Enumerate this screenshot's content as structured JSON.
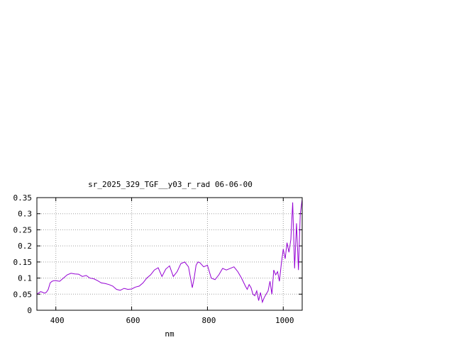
{
  "chart_data": {
    "type": "line",
    "title": "sr_2025_329_TGF__y03_r_rad 06-06-00",
    "xlabel": "nm",
    "ylabel": "",
    "xlim": [
      350,
      1050
    ],
    "ylim": [
      0,
      0.35
    ],
    "xticks": [
      400,
      600,
      800,
      1000
    ],
    "xtick_labels": [
      "400",
      "600",
      "800",
      "1000"
    ],
    "yticks": [
      0,
      0.05,
      0.1,
      0.15,
      0.2,
      0.25,
      0.3,
      0.35
    ],
    "ytick_labels": [
      "0",
      "0.05",
      "0.1",
      "0.15",
      "0.2",
      "0.25",
      "0.3",
      "0.35"
    ],
    "grid": true,
    "legend": "none",
    "series_color": "#9400d3",
    "series": [
      {
        "x": [
          350,
          360,
          365,
          370,
          375,
          380,
          385,
          390,
          395,
          400,
          410,
          420,
          430,
          440,
          450,
          460,
          470,
          480,
          490,
          500,
          510,
          520,
          530,
          540,
          550,
          560,
          570,
          580,
          590,
          600,
          610,
          620,
          630,
          640,
          650,
          660,
          670,
          680,
          690,
          700,
          710,
          720,
          730,
          740,
          750,
          760,
          765,
          770,
          775,
          780,
          790,
          800,
          810,
          820,
          830,
          840,
          850,
          860,
          870,
          880,
          890,
          900,
          905,
          910,
          915,
          920,
          925,
          930,
          935,
          940,
          945,
          950,
          955,
          960,
          965,
          970,
          975,
          980,
          985,
          990,
          995,
          1000,
          1005,
          1010,
          1015,
          1020,
          1025,
          1030,
          1035,
          1040,
          1045,
          1050
        ],
        "y": [
          0.05,
          0.058,
          0.056,
          0.053,
          0.056,
          0.065,
          0.085,
          0.09,
          0.092,
          0.092,
          0.09,
          0.1,
          0.11,
          0.115,
          0.113,
          0.112,
          0.105,
          0.108,
          0.1,
          0.098,
          0.092,
          0.085,
          0.083,
          0.08,
          0.075,
          0.065,
          0.062,
          0.068,
          0.065,
          0.066,
          0.072,
          0.075,
          0.085,
          0.1,
          0.11,
          0.125,
          0.132,
          0.105,
          0.128,
          0.138,
          0.105,
          0.12,
          0.145,
          0.15,
          0.135,
          0.07,
          0.1,
          0.14,
          0.15,
          0.148,
          0.135,
          0.14,
          0.1,
          0.095,
          0.11,
          0.13,
          0.125,
          0.13,
          0.135,
          0.12,
          0.1,
          0.075,
          0.065,
          0.08,
          0.07,
          0.05,
          0.045,
          0.06,
          0.03,
          0.055,
          0.025,
          0.04,
          0.05,
          0.06,
          0.09,
          0.05,
          0.125,
          0.11,
          0.12,
          0.09,
          0.145,
          0.19,
          0.16,
          0.21,
          0.18,
          0.22,
          0.335,
          0.13,
          0.27,
          0.125,
          0.3,
          0.345
        ]
      }
    ]
  }
}
